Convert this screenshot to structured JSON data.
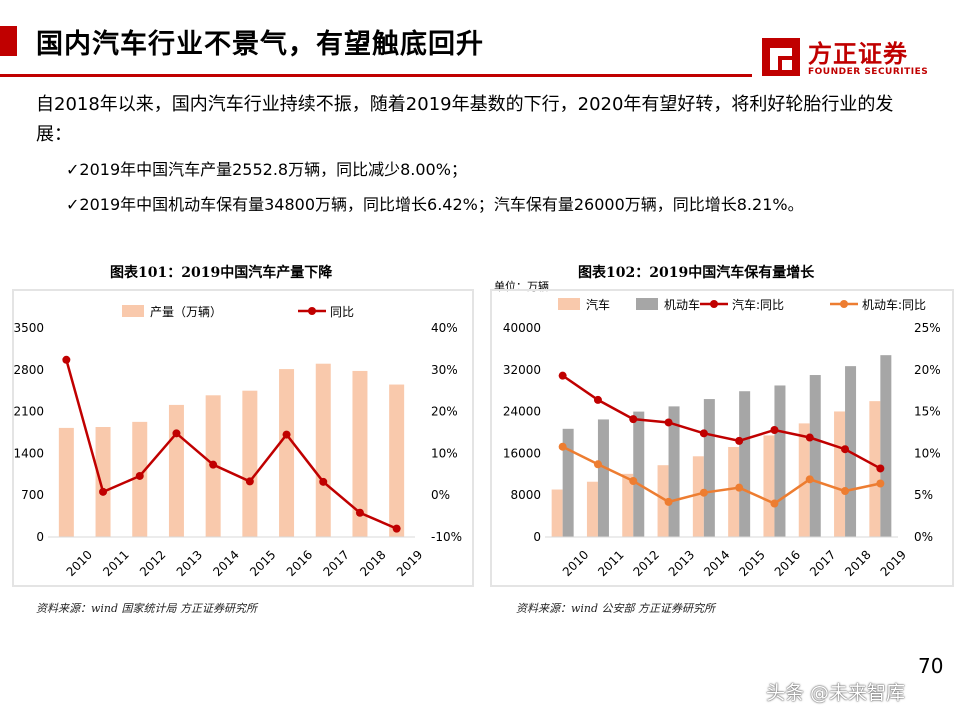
{
  "page": {
    "title": "国内汽车行业不景气，有望触底回升",
    "logo_cn": "方正证券",
    "logo_en": "FOUNDER SECURITIES",
    "intro": "自2018年以来，国内汽车行业持续不振，随着2019年基数的下行，2020年有望好转，将利好轮胎行业的发展：",
    "bullets": [
      "✓2019年中国汽车产量2552.8万辆，同比减少8.00%；",
      "✓2019年中国机动车保有量34800万辆，同比增长6.42%；汽车保有量26000万辆，同比增长8.21%。"
    ],
    "page_number": "70",
    "watermark": "头条 @未来智库",
    "colors": {
      "accent": "#c00000",
      "bar_peach": "#f9c9ac",
      "bar_gray": "#a6a6a6",
      "line_red": "#c00000",
      "line_orange": "#ed7d31"
    }
  },
  "chart_data": [
    {
      "type": "bar",
      "title": "图表101：2019中国汽车产量下降",
      "source": "资料来源：wind 国家统计局 方正证券研究所",
      "categories": [
        "2010",
        "2011",
        "2012",
        "2013",
        "2014",
        "2015",
        "2016",
        "2017",
        "2018",
        "2019"
      ],
      "series": [
        {
          "name": "产量（万辆）",
          "type": "bar",
          "axis": "left",
          "values": [
            1827,
            1842,
            1928,
            2212,
            2373,
            2450,
            2812,
            2902,
            2781,
            2553
          ]
        },
        {
          "name": "同比",
          "type": "line",
          "axis": "right",
          "values": [
            32.4,
            0.8,
            4.6,
            14.8,
            7.3,
            3.3,
            14.5,
            3.2,
            -4.2,
            -8.0
          ]
        }
      ],
      "left_axis": {
        "min": 0,
        "max": 3500,
        "ticks": [
          "0",
          "700",
          "1400",
          "2100",
          "2800",
          "3500"
        ]
      },
      "right_axis": {
        "min": -10,
        "max": 40,
        "ticks": [
          "-10%",
          "0%",
          "10%",
          "20%",
          "30%",
          "40%"
        ]
      },
      "legend": "top"
    },
    {
      "type": "bar",
      "title": "图表102：2019中国汽车保有量增长",
      "unit": "单位：万辆",
      "source": "资料来源：wind 公安部 方正证券研究所",
      "categories": [
        "2010",
        "2011",
        "2012",
        "2013",
        "2014",
        "2015",
        "2016",
        "2017",
        "2018",
        "2019"
      ],
      "series": [
        {
          "name": "汽车",
          "type": "bar",
          "axis": "left",
          "values": [
            9086,
            10578,
            12089,
            13741,
            15447,
            17228,
            19440,
            21743,
            24028,
            26000
          ]
        },
        {
          "name": "机动车",
          "type": "bar",
          "axis": "left",
          "values": [
            20706,
            22500,
            24000,
            25000,
            26400,
            27900,
            29000,
            31000,
            32700,
            34800
          ]
        },
        {
          "name": "汽车:同比",
          "type": "line",
          "axis": "right",
          "values": [
            19.3,
            16.4,
            14.1,
            13.7,
            12.4,
            11.5,
            12.8,
            11.9,
            10.5,
            8.2
          ]
        },
        {
          "name": "机动车:同比",
          "type": "line",
          "axis": "right",
          "values": [
            10.8,
            8.7,
            6.7,
            4.2,
            5.3,
            5.9,
            4.0,
            6.9,
            5.5,
            6.4
          ]
        }
      ],
      "left_axis": {
        "min": 0,
        "max": 40000,
        "ticks": [
          "0",
          "8000",
          "16000",
          "24000",
          "32000",
          "40000"
        ]
      },
      "right_axis": {
        "min": 0,
        "max": 25,
        "ticks": [
          "0%",
          "5%",
          "10%",
          "15%",
          "20%",
          "25%"
        ]
      },
      "legend": "top"
    }
  ]
}
